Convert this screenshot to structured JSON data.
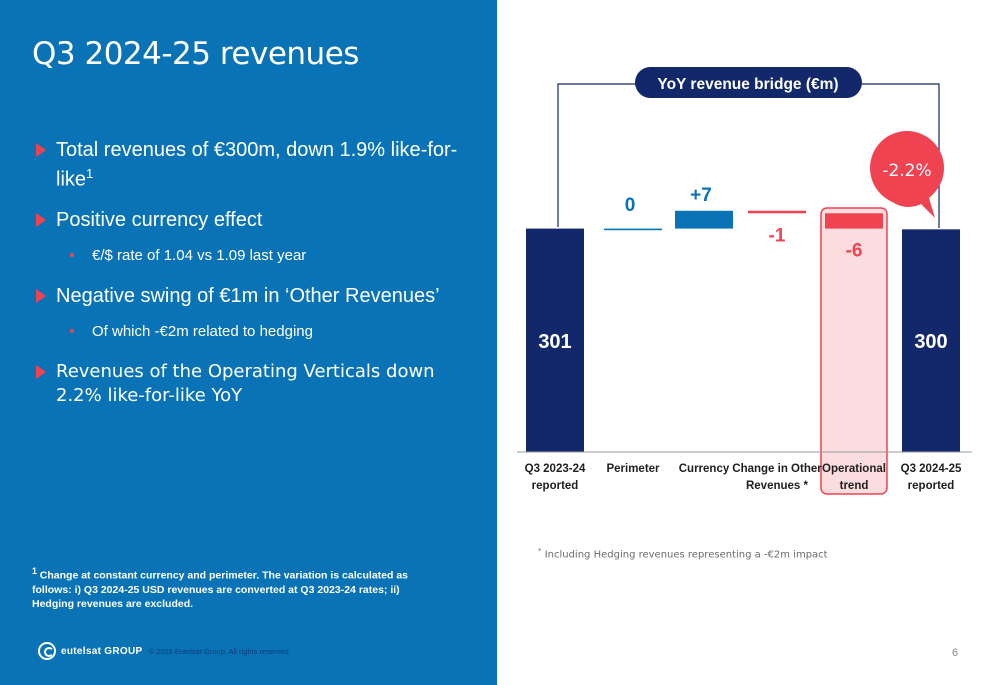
{
  "slide": {
    "title": "Q3 2024-25 revenues",
    "page_number": "6",
    "logo_text": "eutelsat GROUP",
    "copyright": "© 2025 Eutelsat Group. All rights reserved."
  },
  "bullets": [
    {
      "text": "Total revenues of €300m, down 1.9% like-for-like",
      "sup": "1"
    },
    {
      "text": "Positive currency effect"
    },
    {
      "text": "€/$ rate of 1.04 vs 1.09 last year"
    },
    {
      "text": "Negative swing of €1m in ‘Other Revenues’"
    },
    {
      "text": "Of which -€2m related to hedging"
    },
    {
      "text": "Revenues of the Operating Verticals down 2.2% like-for-like YoY"
    }
  ],
  "footnote": {
    "sup": "1",
    "text": "Change at constant currency and perimeter. The variation is calculated as follows: i) Q3 2024-25 USD revenues are converted at Q3 2023-24 rates; ii) Hedging revenues are excluded."
  },
  "chart_note": {
    "sup": "*",
    "text": "Including Hedging revenues representing a -€2m impact"
  },
  "colors": {
    "blue_panel": "#0a73b5",
    "navy": "#13286a",
    "bar_blue": "#0a73b5",
    "red": "#ef4352",
    "highlight_fill": "#fbdde0"
  },
  "chart_data": {
    "type": "waterfall",
    "title": "YoY revenue bridge (€m)",
    "categories": [
      "Q3 2023-24 reported",
      "Perimeter",
      "Currency",
      "Change in Other Revenues *",
      "Operational trend",
      "Q3 2024-25 reported"
    ],
    "category_lines": [
      [
        "Q3 2023-24",
        "reported"
      ],
      [
        "Perimeter"
      ],
      [
        "Currency"
      ],
      [
        "Change in Other",
        "Revenues *"
      ],
      [
        "Operational",
        "trend"
      ],
      [
        "Q3 2024-25",
        "reported"
      ]
    ],
    "values": [
      301,
      0,
      7,
      -1,
      -6,
      300
    ],
    "labels": [
      "301",
      "0",
      "+7",
      "-1",
      "-6",
      "300"
    ],
    "kinds": [
      "total",
      "delta",
      "delta",
      "delta",
      "delta",
      "total"
    ],
    "highlight_index": 4,
    "callout": "-2.2%"
  }
}
